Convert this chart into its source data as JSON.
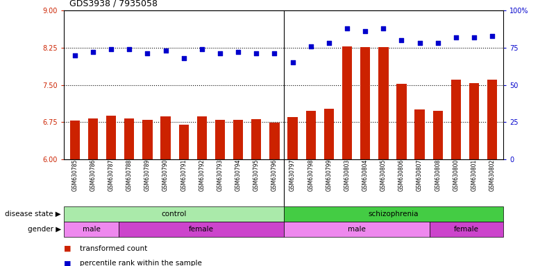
{
  "title": "GDS3938 / 7935058",
  "samples": [
    "GSM630785",
    "GSM630786",
    "GSM630787",
    "GSM630788",
    "GSM630789",
    "GSM630790",
    "GSM630791",
    "GSM630792",
    "GSM630793",
    "GSM630794",
    "GSM630795",
    "GSM630796",
    "GSM630797",
    "GSM630798",
    "GSM630799",
    "GSM630803",
    "GSM630804",
    "GSM630805",
    "GSM630806",
    "GSM630807",
    "GSM630808",
    "GSM630800",
    "GSM630801",
    "GSM630802"
  ],
  "bar_values": [
    6.78,
    6.83,
    6.88,
    6.83,
    6.8,
    6.86,
    6.7,
    6.87,
    6.79,
    6.79,
    6.81,
    6.74,
    6.85,
    6.98,
    7.02,
    8.28,
    8.26,
    8.26,
    7.52,
    7.0,
    6.98,
    7.6,
    7.54,
    7.6
  ],
  "dot_values": [
    70,
    72,
    74,
    74,
    71,
    73,
    68,
    74,
    71,
    72,
    71,
    71,
    65,
    76,
    78,
    88,
    86,
    88,
    80,
    78,
    78,
    82,
    82,
    83
  ],
  "ylim_left": [
    6.0,
    9.0
  ],
  "ylim_right": [
    0,
    100
  ],
  "yticks_left": [
    6.0,
    6.75,
    7.5,
    8.25,
    9.0
  ],
  "yticks_right": [
    0,
    25,
    50,
    75,
    100
  ],
  "hlines": [
    6.75,
    7.5,
    8.25
  ],
  "bar_color": "#cc2200",
  "dot_color": "#0000cc",
  "disease_state_groups": [
    {
      "label": "control",
      "start": 0,
      "end": 12,
      "color": "#aaeaaa"
    },
    {
      "label": "schizophrenia",
      "start": 12,
      "end": 24,
      "color": "#44cc44"
    }
  ],
  "gender_groups": [
    {
      "label": "male",
      "start": 0,
      "end": 3,
      "color": "#ee88ee"
    },
    {
      "label": "female",
      "start": 3,
      "end": 12,
      "color": "#cc44cc"
    },
    {
      "label": "male",
      "start": 12,
      "end": 20,
      "color": "#ee88ee"
    },
    {
      "label": "female",
      "start": 20,
      "end": 24,
      "color": "#cc44cc"
    }
  ],
  "legend_items": [
    {
      "label": "transformed count",
      "color": "#cc2200"
    },
    {
      "label": "percentile rank within the sample",
      "color": "#0000cc"
    }
  ],
  "disease_label": "disease state",
  "gender_label": "gender",
  "n_control": 12,
  "n_total": 24
}
